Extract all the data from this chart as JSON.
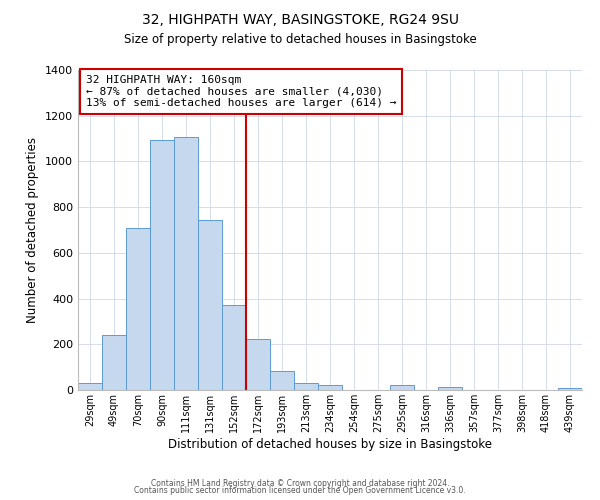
{
  "title": "32, HIGHPATH WAY, BASINGSTOKE, RG24 9SU",
  "subtitle": "Size of property relative to detached houses in Basingstoke",
  "xlabel": "Distribution of detached houses by size in Basingstoke",
  "ylabel": "Number of detached properties",
  "bar_labels": [
    "29sqm",
    "49sqm",
    "70sqm",
    "90sqm",
    "111sqm",
    "131sqm",
    "152sqm",
    "172sqm",
    "193sqm",
    "213sqm",
    "234sqm",
    "254sqm",
    "275sqm",
    "295sqm",
    "316sqm",
    "336sqm",
    "357sqm",
    "377sqm",
    "398sqm",
    "418sqm",
    "439sqm"
  ],
  "bar_values": [
    30,
    240,
    710,
    1095,
    1105,
    745,
    370,
    225,
    85,
    32,
    20,
    0,
    0,
    20,
    0,
    15,
    0,
    0,
    0,
    0,
    10
  ],
  "bar_color": "#c5d8ed",
  "bar_edge_color": "#5b9bd5",
  "vline_x": 6.5,
  "vline_color": "#cc0000",
  "annotation_title": "32 HIGHPATH WAY: 160sqm",
  "annotation_line1": "← 87% of detached houses are smaller (4,030)",
  "annotation_line2": "13% of semi-detached houses are larger (614) →",
  "annotation_box_color": "#ffffff",
  "annotation_box_edge": "#cc0000",
  "ylim": [
    0,
    1400
  ],
  "yticks": [
    0,
    200,
    400,
    600,
    800,
    1000,
    1200,
    1400
  ],
  "footer1": "Contains HM Land Registry data © Crown copyright and database right 2024.",
  "footer2": "Contains public sector information licensed under the Open Government Licence v3.0.",
  "bg_color": "#ffffff",
  "grid_color": "#d0d8e8"
}
